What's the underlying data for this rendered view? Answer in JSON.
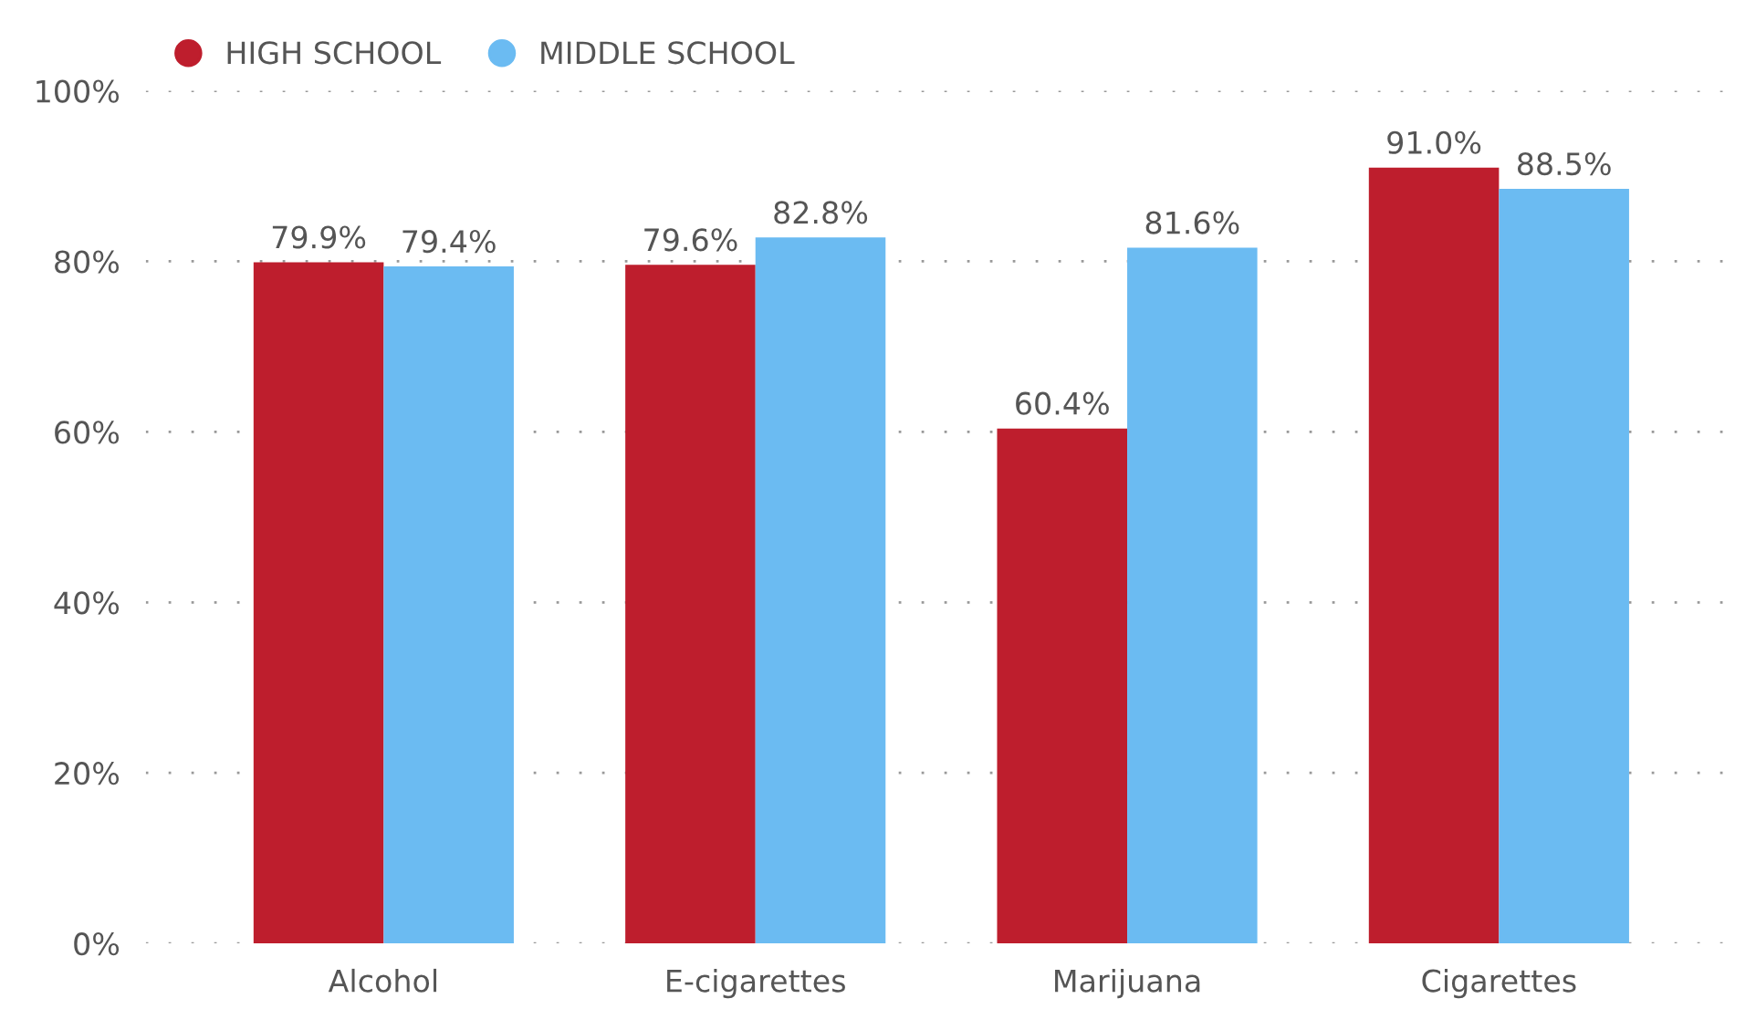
{
  "chart_data": {
    "type": "bar",
    "categories": [
      "Alcohol",
      "E-cigarettes",
      "Marijuana",
      "Cigarettes"
    ],
    "series": [
      {
        "name": "HIGH SCHOOL",
        "color": "#be1e2d",
        "values": [
          79.9,
          79.6,
          60.4,
          91.0
        ],
        "value_labels": [
          "79.9%",
          "79.6%",
          "60.4%",
          "91.0%"
        ]
      },
      {
        "name": "MIDDLE SCHOOL",
        "color": "#6bbbf2",
        "values": [
          79.4,
          82.8,
          81.6,
          88.5
        ],
        "value_labels": [
          "79.4%",
          "82.8%",
          "81.6%",
          "88.5%"
        ]
      }
    ],
    "ylim": [
      0,
      100
    ],
    "yticks": [
      {
        "value": 0,
        "label": "0%"
      },
      {
        "value": 20,
        "label": "20%"
      },
      {
        "value": 40,
        "label": "40%"
      },
      {
        "value": 60,
        "label": "60%"
      },
      {
        "value": 80,
        "label": "80%"
      },
      {
        "value": 100,
        "label": "100%"
      }
    ],
    "grid": "y",
    "legend": "top left"
  }
}
